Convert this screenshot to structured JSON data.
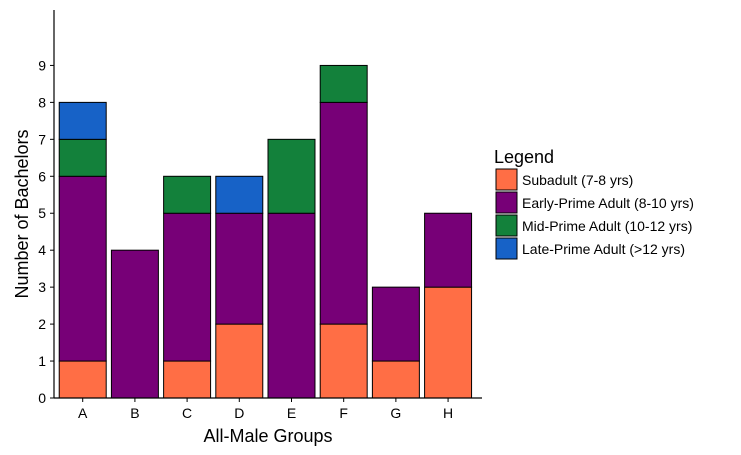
{
  "chart_data": {
    "type": "bar",
    "stacked": true,
    "categories": [
      "A",
      "B",
      "C",
      "D",
      "E",
      "F",
      "G",
      "H"
    ],
    "series": [
      {
        "name": "Subadult (7-8 yrs)",
        "color": "#FF6E45",
        "values": [
          1,
          0,
          1,
          2,
          0,
          2,
          1,
          3
        ]
      },
      {
        "name": "Early-Prime Adult (8-10 yrs)",
        "color": "#770077",
        "values": [
          5,
          4,
          4,
          3,
          5,
          6,
          2,
          2
        ]
      },
      {
        "name": "Mid-Prime Adult (10-12 yrs)",
        "color": "#13813B",
        "values": [
          1,
          0,
          1,
          0,
          2,
          1,
          0,
          0
        ]
      },
      {
        "name": "Late-Prime Adult (>12 yrs)",
        "color": "#1762C7",
        "values": [
          1,
          0,
          0,
          1,
          0,
          0,
          0,
          0
        ]
      }
    ],
    "title": "",
    "xlabel": "All-Male Groups",
    "ylabel": "Number of Bachelors",
    "ylim": [
      0,
      10.5
    ],
    "yticks": [
      "0",
      "1",
      "2",
      "3",
      "4",
      "5",
      "6",
      "7",
      "8",
      "9"
    ],
    "grid": false,
    "legend": {
      "title": "Legend",
      "placement": "right"
    }
  }
}
